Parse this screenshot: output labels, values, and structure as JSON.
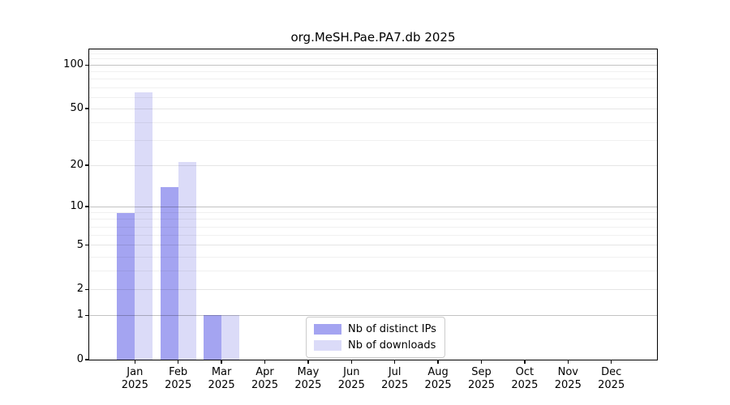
{
  "chart_data": {
    "type": "bar",
    "title": "org.MeSH.Pae.PA7.db 2025",
    "categories": [
      {
        "month": "Jan",
        "year": "2025"
      },
      {
        "month": "Feb",
        "year": "2025"
      },
      {
        "month": "Mar",
        "year": "2025"
      },
      {
        "month": "Apr",
        "year": "2025"
      },
      {
        "month": "May",
        "year": "2025"
      },
      {
        "month": "Jun",
        "year": "2025"
      },
      {
        "month": "Jul",
        "year": "2025"
      },
      {
        "month": "Aug",
        "year": "2025"
      },
      {
        "month": "Sep",
        "year": "2025"
      },
      {
        "month": "Oct",
        "year": "2025"
      },
      {
        "month": "Nov",
        "year": "2025"
      },
      {
        "month": "Dec",
        "year": "2025"
      }
    ],
    "series": [
      {
        "name": "Nb of distinct IPs",
        "color": "#a4a4f1",
        "values": [
          9,
          14,
          1,
          0,
          0,
          0,
          0,
          0,
          0,
          0,
          0,
          0
        ]
      },
      {
        "name": "Nb of downloads",
        "color": "#dbdbf8",
        "values": [
          65,
          21,
          1,
          0,
          0,
          0,
          0,
          0,
          0,
          0,
          0,
          0
        ]
      }
    ],
    "y_axis": {
      "scale": "log1p",
      "ticks": [
        100,
        50,
        20,
        10,
        5,
        2,
        1,
        0
      ],
      "major_grid_at": [
        100,
        10,
        1
      ],
      "minor_ticks": [
        3,
        4,
        6,
        7,
        8,
        9,
        30,
        40,
        60,
        70,
        80,
        90,
        110,
        120
      ],
      "max_value": 128,
      "grid": "on"
    },
    "legend": {
      "position": "inside-bottom-center"
    }
  }
}
